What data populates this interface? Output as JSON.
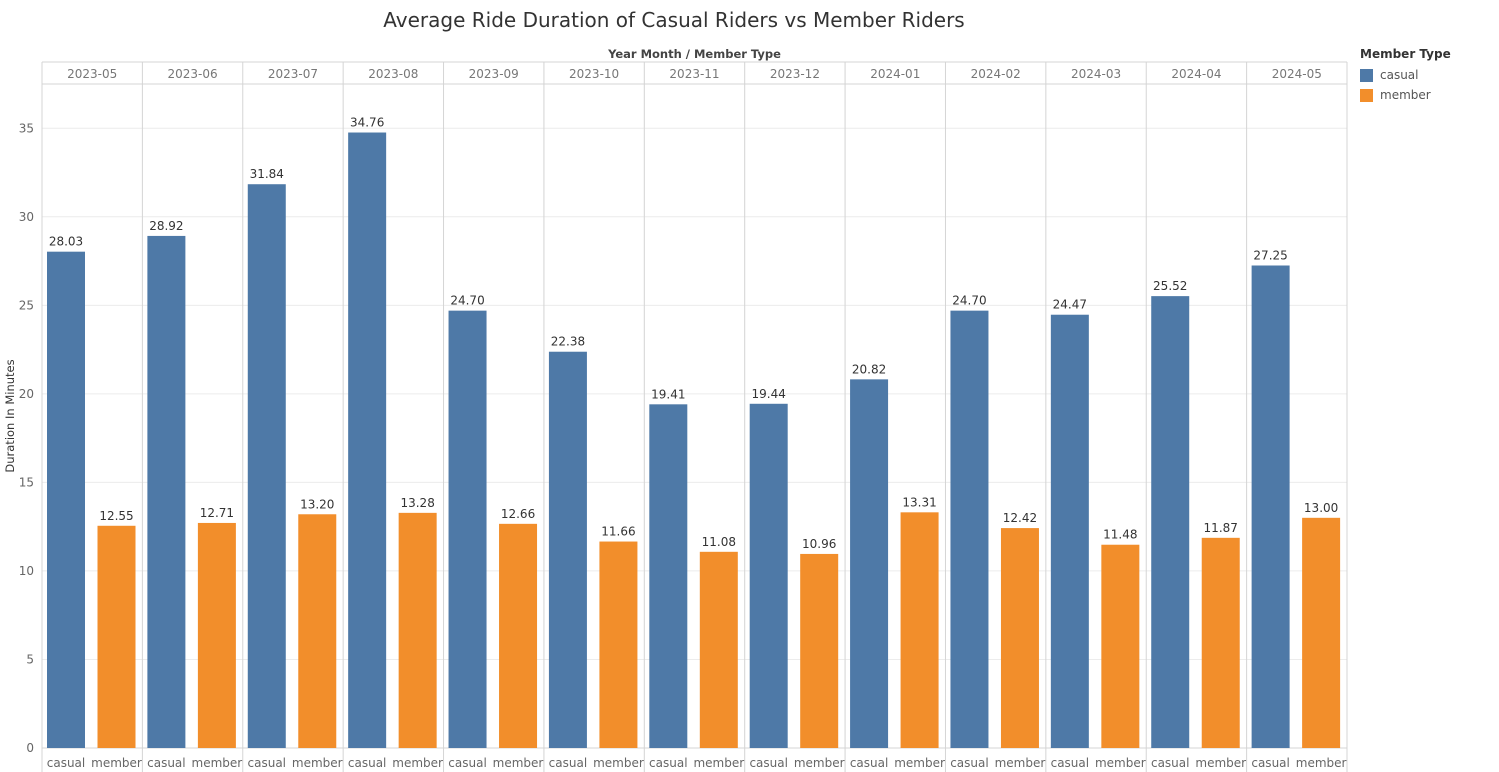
{
  "colors": {
    "casual": "#4e79a7",
    "member": "#f28e2b"
  },
  "legend": {
    "title": "Member Type",
    "items": [
      {
        "label": "casual",
        "color": "#4e79a7"
      },
      {
        "label": "member",
        "color": "#f28e2b"
      }
    ]
  },
  "chart_data": {
    "type": "bar",
    "title": "Average Ride Duration of Casual Riders vs Member Riders",
    "header_label": "Year Month  /  Member Type",
    "ylabel": "Duration In Minutes",
    "ylim": [
      0,
      37.5
    ],
    "yticks": [
      0,
      5,
      10,
      15,
      20,
      25,
      30,
      35
    ],
    "grid": true,
    "legend_position": "right",
    "categories": [
      "2023-05",
      "2023-06",
      "2023-07",
      "2023-08",
      "2023-09",
      "2023-10",
      "2023-11",
      "2023-12",
      "2024-01",
      "2024-02",
      "2024-03",
      "2024-04",
      "2024-05"
    ],
    "sub_categories": [
      "casual",
      "member"
    ],
    "series": [
      {
        "name": "casual",
        "values": [
          28.03,
          28.92,
          31.84,
          34.76,
          24.7,
          22.38,
          19.41,
          19.44,
          20.82,
          24.7,
          24.47,
          25.52,
          27.25
        ],
        "labels": [
          "28.03",
          "28.92",
          "31.84",
          "34.76",
          "24.70",
          "22.38",
          "19.41",
          "19.44",
          "20.82",
          "24.70",
          "24.47",
          "25.52",
          "27.25"
        ]
      },
      {
        "name": "member",
        "values": [
          12.55,
          12.71,
          13.2,
          13.28,
          12.66,
          11.66,
          11.08,
          10.96,
          13.31,
          12.42,
          11.48,
          11.87,
          13.0
        ],
        "labels": [
          "12.55",
          "12.71",
          "13.20",
          "13.28",
          "12.66",
          "11.66",
          "11.08",
          "10.96",
          "13.31",
          "12.42",
          "11.48",
          "11.87",
          "13.00"
        ]
      }
    ]
  }
}
